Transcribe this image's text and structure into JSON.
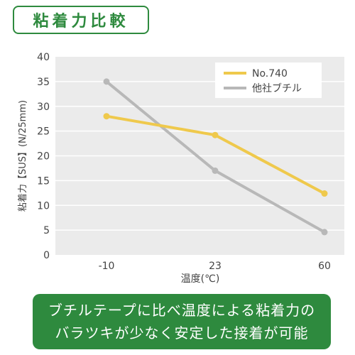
{
  "header": {
    "title": "粘着力比較"
  },
  "chart_data": {
    "type": "line",
    "x": [
      -10,
      23,
      60
    ],
    "xtick_labels": [
      "-10",
      "23",
      "60"
    ],
    "series": [
      {
        "name": "No.740",
        "values": [
          28,
          24.2,
          12.4
        ],
        "color": "#efc94c"
      },
      {
        "name": "他社ブチル",
        "values": [
          35,
          17,
          4.6
        ],
        "color": "#b8b8b8"
      }
    ],
    "xlabel": "温度(℃)",
    "ylabel": "粘着力【SUS】(N/25mm)",
    "ylim": [
      0,
      40
    ],
    "yticks": [
      0,
      5,
      10,
      15,
      20,
      25,
      30,
      35,
      40
    ],
    "grid": "horizontal",
    "legend": "top-right",
    "colors": {
      "plot_bg": "#ebebeb",
      "grid": "#ffffff"
    }
  },
  "banner": {
    "line1": "ブチルテープに比べ温度による粘着力の",
    "line2": "バラツキが少なく安定した接着が可能"
  }
}
